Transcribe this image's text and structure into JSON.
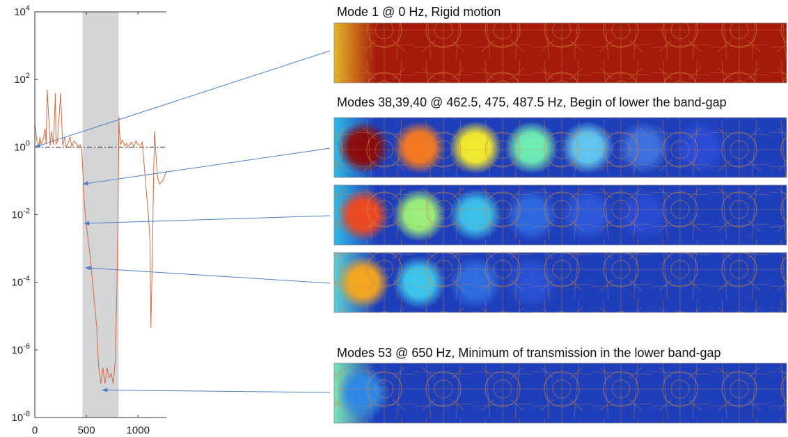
{
  "chart_data": {
    "type": "line",
    "y_scale": "log",
    "xlim": [
      0,
      1275
    ],
    "ylim": [
      1e-08,
      10000
    ],
    "x_ticks": [
      0,
      500,
      1000
    ],
    "y_ticks": [
      1e-08,
      1e-06,
      0.0001,
      0.01,
      1,
      100,
      10000
    ],
    "y_tick_labels": [
      {
        "base": "10",
        "exp": "-8"
      },
      {
        "base": "10",
        "exp": "-6"
      },
      {
        "base": "10",
        "exp": "-4"
      },
      {
        "base": "10",
        "exp": "-2"
      },
      {
        "base": "10",
        "exp": "0"
      },
      {
        "base": "10",
        "exp": "2"
      },
      {
        "base": "10",
        "exp": "4"
      }
    ],
    "band_gap": [
      462.5,
      812.5
    ],
    "reference_line": 1,
    "grid": false,
    "series": [
      {
        "x": [
          0,
          20,
          40,
          50,
          60,
          80,
          100,
          110,
          120,
          150,
          160,
          180,
          200,
          205,
          220,
          250,
          270,
          290,
          300,
          320,
          340,
          360,
          380,
          400,
          420,
          440,
          455,
          462,
          470,
          480,
          500,
          520,
          540,
          560,
          580,
          600,
          610,
          620,
          640,
          660,
          680,
          700,
          720,
          740,
          760,
          780,
          795,
          805,
          812,
          815,
          820,
          830,
          850,
          870,
          890,
          900,
          920,
          940,
          960,
          980,
          1000,
          1020,
          1040,
          1060,
          1080,
          1100,
          1115,
          1120,
          1125,
          1140,
          1150,
          1160,
          1170,
          1180,
          1190,
          1200,
          1210,
          1220,
          1240,
          1260,
          1280
        ],
        "values": [
          5,
          1.5,
          1.1,
          2,
          1.2,
          1.6,
          3.5,
          1.2,
          50,
          1.1,
          3,
          1.2,
          40,
          1.2,
          1.5,
          40,
          1.1,
          2,
          1,
          1.2,
          2,
          1,
          1.5,
          1.3,
          1,
          1.2,
          0.8,
          0.3,
          0.1,
          0.02,
          0.005,
          0.0015,
          0.0005,
          0.0001,
          2e-05,
          5e-06,
          1e-06,
          3e-07,
          1e-07,
          3e-07,
          1e-07,
          3e-07,
          1.5e-07,
          2e-07,
          1e-07,
          5e-07,
          5e-05,
          0.005,
          0.5,
          8,
          3,
          1.2,
          1.6,
          1.1,
          1.3,
          1,
          1.2,
          1.4,
          1,
          1.5,
          1.2,
          1.1,
          1.4,
          0.3,
          0.05,
          0.01,
          0.002,
          0.0001,
          4.5e-06,
          0.001,
          0.1,
          3,
          1,
          0.3,
          0.12,
          0.1,
          0.08,
          0.09,
          0.1,
          0.15,
          0.2
        ]
      }
    ]
  },
  "mode_panels": [
    {
      "title": "Mode 1 @ 0 Hz, Rigid motion",
      "blob_colors": [],
      "edge_glow": "#e8c02a",
      "background": "#a51b0b"
    },
    {
      "title": "Modes 38,39,40 @ 462.5, 475, 487.5 Hz, Begin of lower the band-gap",
      "blob_colors": [
        "#8b0a0a",
        "#fa7a1e",
        "#f7ee2c",
        "#6ff0b4",
        "#63c8ef",
        "#3f72e0",
        "#2c4cd8"
      ],
      "edge_glow": "#2ec0e8",
      "background": "#1f3fba"
    },
    {
      "title": "",
      "blob_colors": [
        "#f04820",
        "#9ef27a",
        "#3dc2ea",
        "#2f6ae2",
        "#2c58da",
        "#2a4ad4"
      ],
      "edge_glow": "#2ec0e8",
      "background": "#1f3fba"
    },
    {
      "title": "",
      "blob_colors": [
        "#f8a81c",
        "#3ec8ec",
        "#2f6ee0",
        "#2a52d6"
      ],
      "edge_glow": "#5fd8d8",
      "background": "#1f3fba"
    },
    {
      "title": "Modes 53 @ 650 Hz, Minimum of transmission in the lower band-gap",
      "blob_colors": [
        "#2e88e6"
      ],
      "edge_glow": "#7ff0b8",
      "background": "#1f3fba"
    }
  ],
  "annotations": [
    {
      "from_panel": 0,
      "to_x": 0,
      "to_y": 1
    },
    {
      "from_panel": 1,
      "to_x": 462.5,
      "to_y": 0.08
    },
    {
      "from_panel": 2,
      "to_x": 475,
      "to_y": 0.0055
    },
    {
      "from_panel": 3,
      "to_x": 487.5,
      "to_y": 0.00027
    },
    {
      "from_panel": 4,
      "to_x": 650,
      "to_y": 6.5e-08
    }
  ],
  "colors": {
    "curve": "#d9693f",
    "band": "#d3d5d6",
    "arrow": "#4f7fc4",
    "mesh": "#d28a3c",
    "axis": "#333333"
  }
}
